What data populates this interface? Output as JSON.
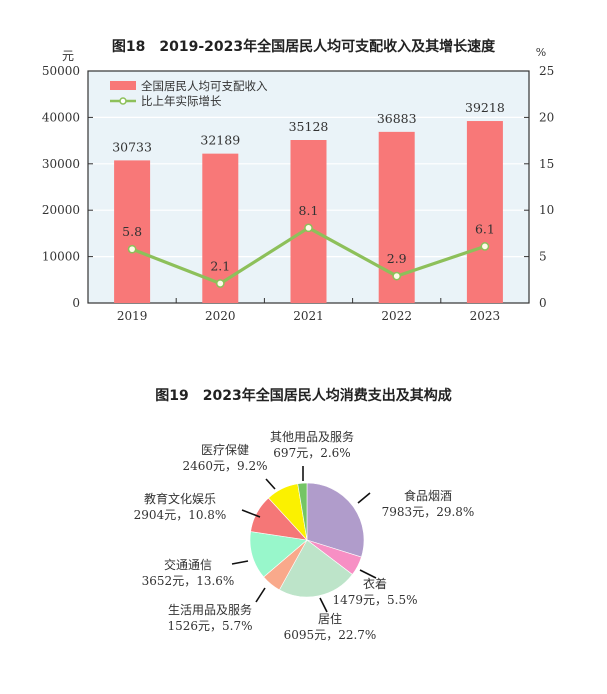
{
  "chart_data": [
    {
      "type": "bar",
      "title": "图18　2019-2023年全国居民人均可支配收入及其增长速度",
      "xlabel": "",
      "ylabel": "元",
      "y2label": "%",
      "ylim": [
        0,
        50000
      ],
      "y2lim": [
        0,
        25
      ],
      "yticks": [
        "0",
        "10000",
        "20000",
        "30000",
        "40000",
        "50000"
      ],
      "y2ticks": [
        "0",
        "5",
        "10",
        "15",
        "20",
        "25"
      ],
      "categories": [
        "2019",
        "2020",
        "2021",
        "2022",
        "2023"
      ],
      "series": [
        {
          "name": "全国居民人均可支配收入",
          "type": "bar",
          "axis": "left",
          "color": "#f87878",
          "values": [
            30733,
            32189,
            35128,
            36883,
            39218
          ],
          "labels": [
            "30733",
            "32189",
            "35128",
            "36883",
            "39218"
          ]
        },
        {
          "name": "比上年实际增长",
          "type": "line",
          "axis": "right",
          "color": "#8dc05a",
          "values": [
            5.8,
            2.1,
            8.1,
            2.9,
            6.1
          ],
          "labels": [
            "5.8",
            "2.1",
            "8.1",
            "2.9",
            "6.1"
          ]
        }
      ],
      "legend_position": "top-left inside",
      "grid": true,
      "background": "#eaf3f8"
    },
    {
      "type": "pie",
      "title": "图19　2023年全国居民人均消费支出及其构成",
      "slices": [
        {
          "name": "食品烟酒",
          "value": 7983,
          "percent": 29.8,
          "label": "7983元，29.8%",
          "color": "#b09ccb"
        },
        {
          "name": "衣着",
          "value": 1479,
          "percent": 5.5,
          "label": "1479元，5.5%",
          "color": "#f78fc4"
        },
        {
          "name": "居住",
          "value": 6095,
          "percent": 22.7,
          "label": "6095元，22.7%",
          "color": "#bde4c9"
        },
        {
          "name": "生活用品及服务",
          "value": 1526,
          "percent": 5.7,
          "label": "1526元，5.7%",
          "color": "#f9a98b"
        },
        {
          "name": "交通通信",
          "value": 3652,
          "percent": 13.6,
          "label": "3652元，13.6%",
          "color": "#98f7cb"
        },
        {
          "name": "教育文化娱乐",
          "value": 2904,
          "percent": 10.8,
          "label": "2904元，10.8%",
          "color": "#f57777"
        },
        {
          "name": "医疗保健",
          "value": 2460,
          "percent": 9.2,
          "label": "2460元，9.2%",
          "color": "#fbf100"
        },
        {
          "name": "其他用品及服务",
          "value": 697,
          "percent": 2.6,
          "label": "697元，2.6%",
          "color": "#74c565"
        }
      ]
    }
  ]
}
